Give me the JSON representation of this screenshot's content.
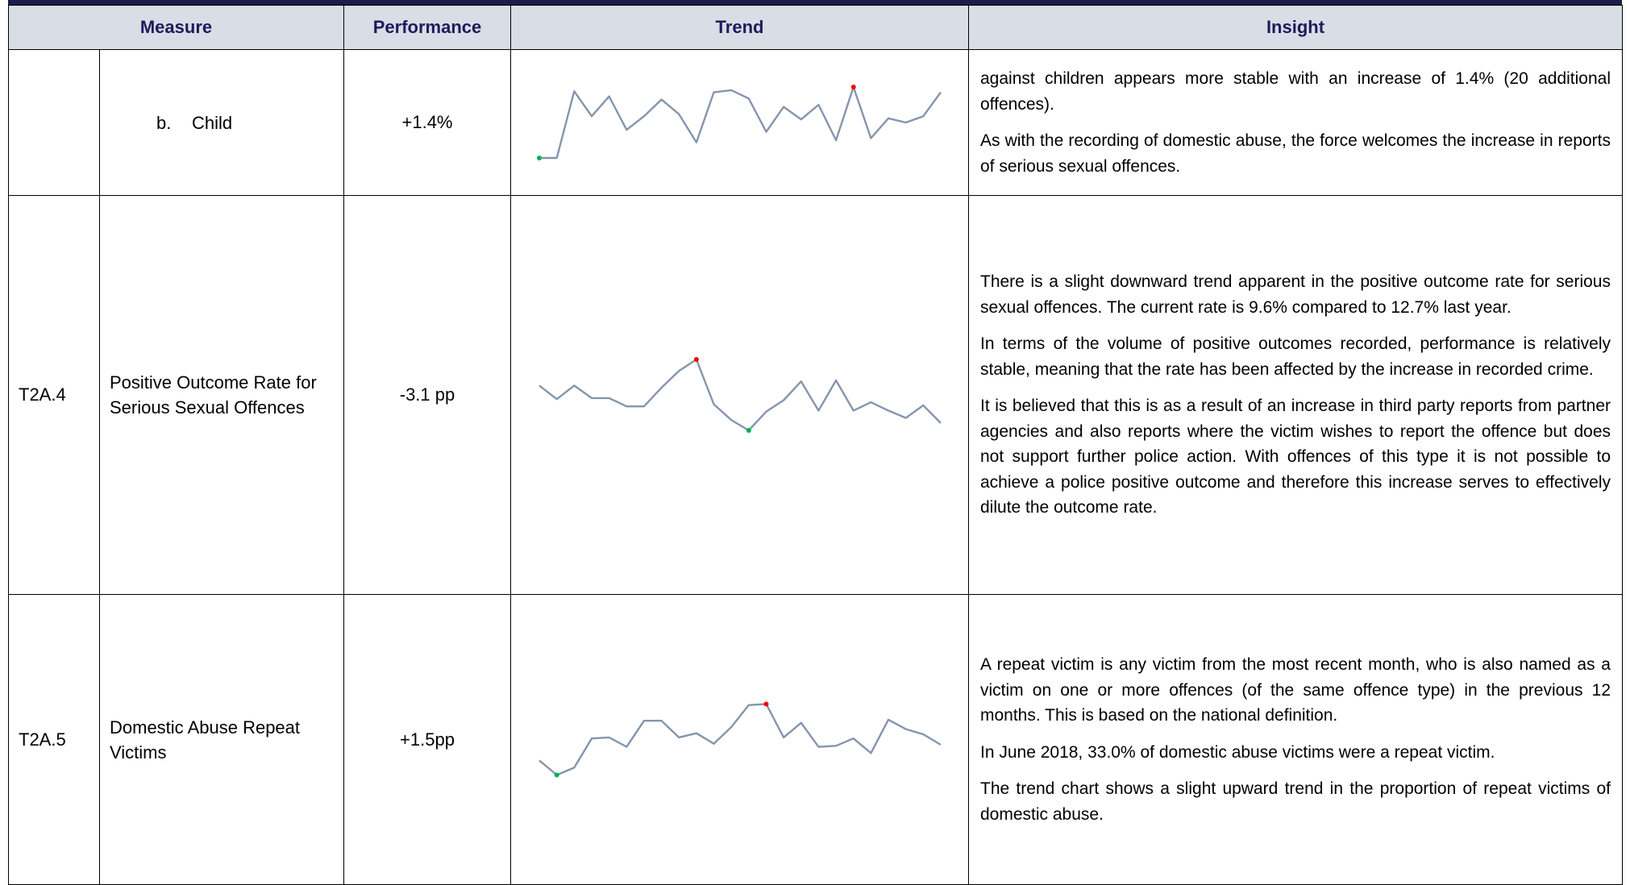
{
  "table": {
    "headers": [
      "Measure",
      "Performance",
      "Trend",
      "Insight"
    ],
    "rows": [
      {
        "marker": "b.",
        "measure": "Child",
        "performance": "+1.4%",
        "trend": {
          "type": "line",
          "color": "#8595ad",
          "max_color": "#ff0000",
          "min_color": "#00b050",
          "values": [
            5,
            5,
            69,
            45,
            64,
            32,
            45,
            61,
            47,
            20,
            68,
            70,
            62,
            30,
            54,
            42,
            56,
            22,
            73,
            24,
            43,
            39,
            45,
            68
          ]
        },
        "insight": [
          "against children appears more stable with an increase of 1.4% (20 additional offences).",
          "As with the recording of domestic abuse, the force welcomes the increase in reports of serious sexual offences."
        ]
      },
      {
        "code": "T2A.4",
        "measure": "Positive Outcome Rate for Serious Sexual Offences",
        "performance": "-3.1 pp",
        "trend": {
          "type": "line",
          "color": "#8595ad",
          "max_color": "#ff0000",
          "min_color": "#00b050",
          "values": [
            59,
            46,
            59,
            47,
            47,
            39,
            39,
            57,
            73,
            84,
            41,
            26,
            16,
            34,
            45,
            63,
            35,
            64,
            35,
            43,
            35,
            28,
            40,
            23
          ]
        },
        "insight": [
          "There is a slight downward trend apparent in the positive outcome rate for serious sexual offences.  The current rate is 9.6% compared to 12.7% last year.",
          "In terms of the volume of positive outcomes recorded, performance is relatively stable, meaning that the rate has been affected by the increase in recorded crime.",
          "It is believed that this is as a result of an increase in third party reports from partner agencies and also reports where the victim wishes to report the offence but does not support further police action.  With offences of this type it is not possible to achieve a police positive outcome and therefore this increase serves to effectively dilute the outcome rate."
        ]
      },
      {
        "code": "T2A.5",
        "measure": "Domestic Abuse Repeat Victims",
        "performance": "+1.5pp",
        "trend": {
          "type": "line",
          "color": "#8595ad",
          "max_color": "#ff0000",
          "min_color": "#00b050",
          "values": [
            31,
            17,
            24,
            52,
            53,
            44,
            69,
            69,
            53,
            57,
            47,
            63,
            84,
            85,
            53,
            67,
            44,
            45,
            52,
            38,
            70,
            61,
            56,
            46
          ]
        },
        "insight": [
          "A repeat victim is any victim from the most recent month, who is also named as a victim on one or more offences (of the same offence type) in the previous 12 months.  This is based on the national definition.",
          "In June 2018, 33.0% of domestic abuse victims were a repeat victim.",
          "The trend chart shows a slight upward trend in the proportion of repeat victims of domestic abuse."
        ]
      }
    ]
  }
}
